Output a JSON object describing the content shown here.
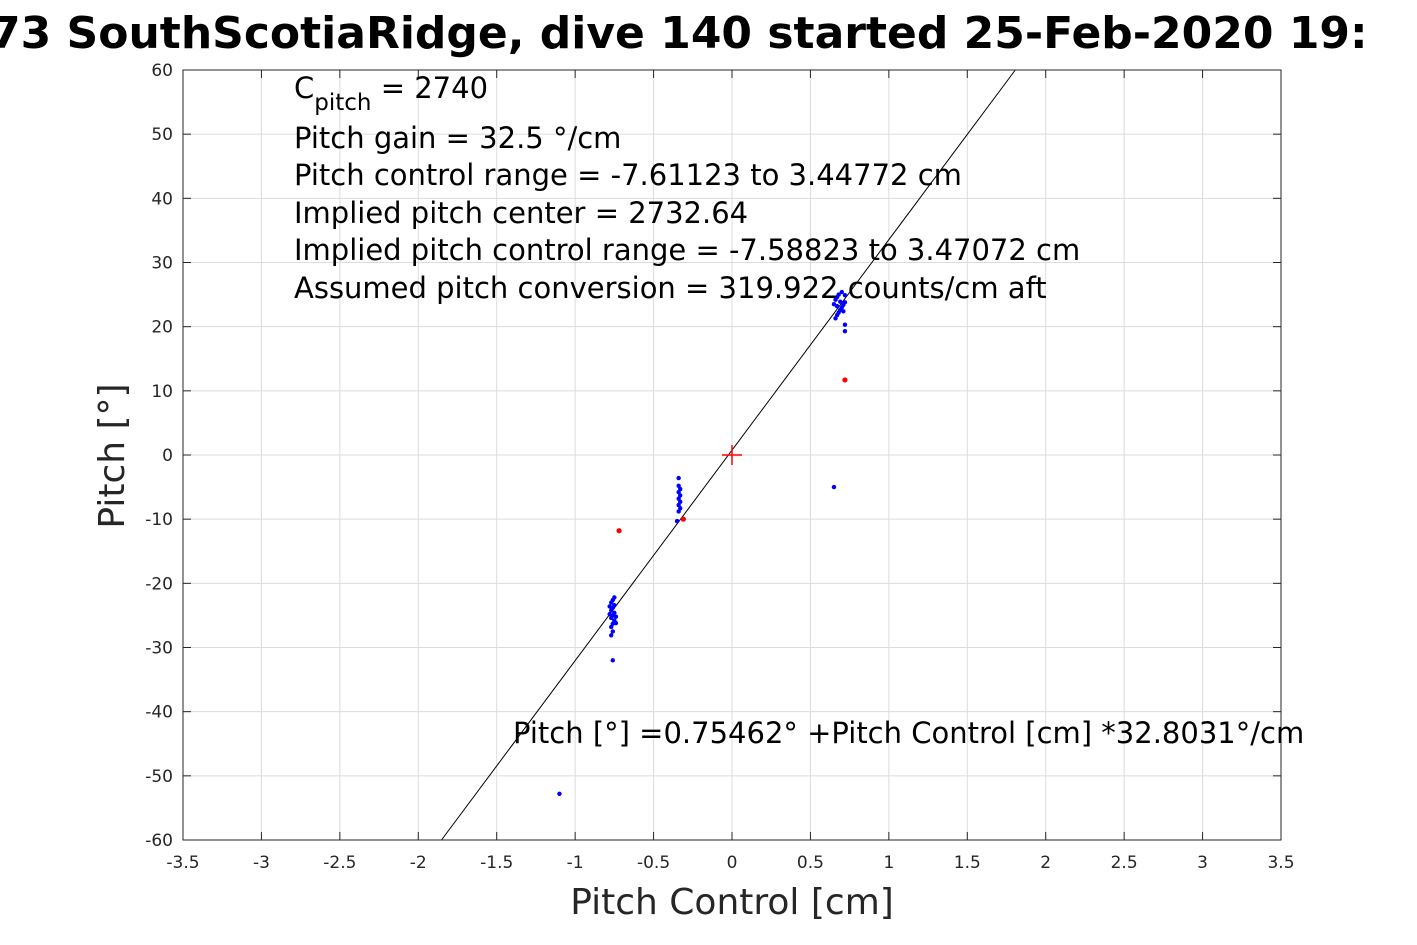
{
  "chart_data": {
    "type": "scatter",
    "title": "73 SouthScotiaRidge, dive 140 started 25-Feb-2020 19:",
    "xlabel": "Pitch Control [cm]",
    "ylabel": "Pitch [°]",
    "xlim": [
      -3.5,
      3.5
    ],
    "ylim": [
      -60,
      60
    ],
    "x_ticks": [
      -3.5,
      -3,
      -2.5,
      -2,
      -1.5,
      -1,
      -0.5,
      0,
      0.5,
      1,
      1.5,
      2,
      2.5,
      3,
      3.5
    ],
    "x_tick_labels": [
      "-3.5",
      "-3",
      "-2.5",
      "-2",
      "-1.5",
      "-1",
      "-0.5",
      "0",
      "0.5",
      "1",
      "1.5",
      "2",
      "2.5",
      "3",
      "3.5"
    ],
    "y_ticks": [
      60,
      50,
      40,
      30,
      20,
      10,
      0,
      -10,
      -20,
      -30,
      -40,
      -50,
      -60
    ],
    "y_tick_labels": [
      "60",
      "50",
      "40",
      "30",
      "20",
      "10",
      "0",
      "-10",
      "-20",
      "-30",
      "-40",
      "-50",
      "-60"
    ],
    "grid": true,
    "annotations": {
      "c_pitch_main": "C",
      "c_pitch_sub": "pitch",
      "c_pitch_rest": " = 2740",
      "lines": [
        "Pitch gain = 32.5 °/cm",
        "Pitch control range = -7.61123 to 3.44772 cm",
        "Implied pitch center = 2732.64",
        "Implied pitch control range = -7.58823 to 3.47072 cm",
        "Assumed pitch conversion = 319.922 counts/cm aft"
      ],
      "fit_equation": "Pitch [°] =0.75462° +Pitch Control [cm] *32.8031°/cm"
    },
    "fit_line": {
      "intercept": 0.75462,
      "slope": 32.8031,
      "color": "#000000"
    },
    "center_marker": {
      "x": 0,
      "y": 0,
      "color": "#ff0000"
    },
    "series": [
      {
        "color": "#0000ff",
        "points": [
          [
            -1.1,
            -52.8
          ],
          [
            -0.76,
            -32
          ],
          [
            -0.77,
            -28.1
          ],
          [
            -0.76,
            -27.5
          ],
          [
            -0.77,
            -26.8
          ],
          [
            -0.76,
            -26.3
          ],
          [
            -0.75,
            -25.8
          ],
          [
            -0.77,
            -25.4
          ],
          [
            -0.76,
            -25
          ],
          [
            -0.75,
            -24.6
          ],
          [
            -0.77,
            -24.2
          ],
          [
            -0.76,
            -23.8
          ],
          [
            -0.75,
            -23.4
          ],
          [
            -0.77,
            -23
          ],
          [
            -0.76,
            -22.6
          ],
          [
            -0.75,
            -22.2
          ],
          [
            -0.78,
            -24.8
          ],
          [
            -0.74,
            -25.2
          ],
          [
            -0.78,
            -23.6
          ],
          [
            -0.74,
            -26.2
          ],
          [
            -0.34,
            -3.6
          ],
          [
            -0.34,
            -4.8
          ],
          [
            -0.33,
            -5.3
          ],
          [
            -0.34,
            -5.8
          ],
          [
            -0.33,
            -6.3
          ],
          [
            -0.34,
            -6.8
          ],
          [
            -0.33,
            -7.3
          ],
          [
            -0.34,
            -7.8
          ],
          [
            -0.33,
            -8.3
          ],
          [
            -0.34,
            -8.8
          ],
          [
            -0.35,
            -10.3
          ],
          [
            0.65,
            -5
          ],
          [
            0.72,
            19.3
          ],
          [
            0.72,
            20.3
          ],
          [
            0.66,
            21.3
          ],
          [
            0.67,
            21.8
          ],
          [
            0.68,
            22.2
          ],
          [
            0.69,
            22.6
          ],
          [
            0.7,
            23
          ],
          [
            0.71,
            23.4
          ],
          [
            0.72,
            23.8
          ],
          [
            0.66,
            24.2
          ],
          [
            0.67,
            24.6
          ],
          [
            0.68,
            25
          ],
          [
            0.7,
            25.4
          ],
          [
            0.71,
            22.4
          ],
          [
            0.69,
            23.9
          ],
          [
            0.67,
            23.2
          ],
          [
            0.72,
            24.9
          ],
          [
            0.65,
            23.5
          ]
        ]
      },
      {
        "color": "#ff0000",
        "points": [
          [
            -0.72,
            -11.8
          ],
          [
            -0.31,
            -10
          ],
          [
            0.72,
            11.7
          ]
        ]
      }
    ]
  }
}
